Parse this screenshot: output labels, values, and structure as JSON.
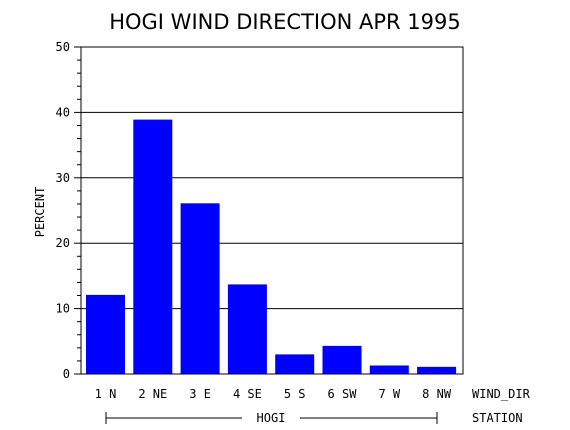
{
  "chart_data": {
    "type": "bar",
    "title": "HOGI WIND DIRECTION APR 1995",
    "ylabel": "PERCENT",
    "xlabel": "WIND_DIR",
    "group_label": "HOGI",
    "group_axis_label": "STATION",
    "categories": [
      "1 N",
      "2 NE",
      "3 E",
      "4 SE",
      "5 S",
      "6 SW",
      "7 W",
      "8 NW"
    ],
    "values": [
      12.1,
      38.9,
      26.1,
      13.7,
      3.0,
      4.3,
      1.3,
      1.1
    ],
    "ylim": [
      0,
      50
    ],
    "yticks": [
      0,
      10,
      20,
      30,
      40,
      50
    ],
    "grid": true,
    "bar_color": "#0000ff"
  }
}
